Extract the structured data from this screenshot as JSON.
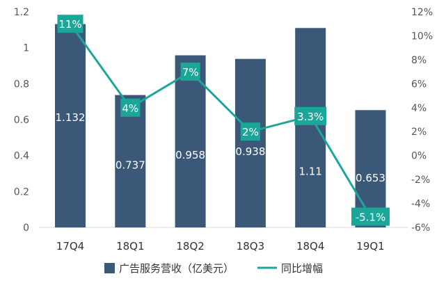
{
  "chart_data": {
    "type": "bar+line",
    "categories": [
      "17Q4",
      "18Q1",
      "18Q2",
      "18Q3",
      "18Q4",
      "19Q1"
    ],
    "series": [
      {
        "name": "广告服务营收（亿美元）",
        "type": "bar",
        "axis": "left",
        "values": [
          1.132,
          0.737,
          0.958,
          0.938,
          1.11,
          0.653
        ],
        "labels": [
          "1.132",
          "0.737",
          "0.958",
          "0.938",
          "1.11",
          "0.653"
        ]
      },
      {
        "name": "同比增幅",
        "type": "line",
        "axis": "right",
        "values": [
          11,
          4,
          7,
          2,
          3.3,
          -5.1
        ],
        "labels": [
          "11%",
          "4%",
          "7%",
          "2%",
          "3.3%",
          "-5.1%"
        ]
      }
    ],
    "y_left": {
      "ylim": [
        0,
        1.2
      ],
      "ticks": [
        0,
        0.2,
        0.4,
        0.6,
        0.8,
        1.0,
        1.2
      ],
      "tick_labels": [
        "0",
        "0.2",
        "0.4",
        "0.6",
        "0.8",
        "1",
        "1.2"
      ]
    },
    "y_right": {
      "ylim": [
        -6,
        12
      ],
      "ticks": [
        -6,
        -4,
        -2,
        0,
        2,
        4,
        6,
        8,
        10,
        12
      ],
      "tick_labels": [
        "-6%",
        "-4%",
        "-2%",
        "0%",
        "2%",
        "4%",
        "6%",
        "8%",
        "10%",
        "12%"
      ]
    },
    "colors": {
      "bar": "#3c5878",
      "line": "#1aa79a",
      "label_box": "#1aa79a"
    },
    "grid": false,
    "legend": "bottom"
  }
}
